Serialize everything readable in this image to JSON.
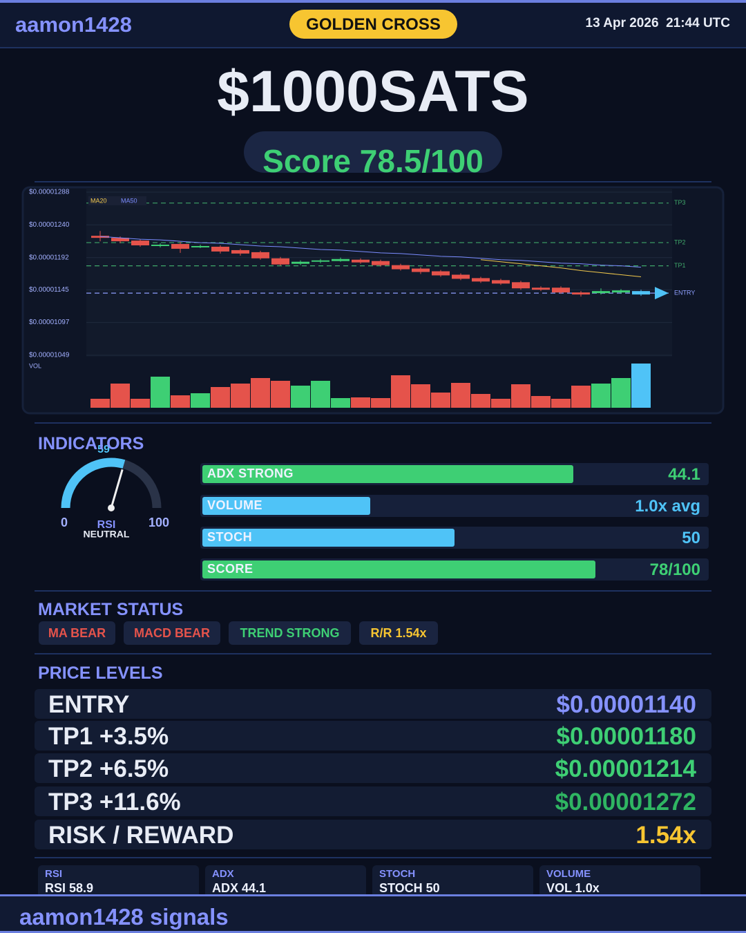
{
  "header": {
    "user": "aamon1428",
    "badge": "GOLDEN CROSS",
    "timestamp": "13 Apr 2026  21:44 UTC"
  },
  "title": "$1000SATS",
  "score": "Score 78.5/100",
  "chart_data": {
    "type": "candlestick",
    "ylim": [
      1.049e-05,
      1.288e-05
    ],
    "yticks": [
      {
        "value": 1.288e-05,
        "label": "$0.00001288"
      },
      {
        "value": 1.24e-05,
        "label": "$0.00001240"
      },
      {
        "value": 1.192e-05,
        "label": "$0.00001192"
      },
      {
        "value": 1.145e-05,
        "label": "$0.00001145"
      },
      {
        "value": 1.097e-05,
        "label": "$0.00001097"
      },
      {
        "value": 1.049e-05,
        "label": "$0.00001049"
      }
    ],
    "grid": true,
    "open": [
      1.224e-05,
      1.221e-05,
      1.217e-05,
      1.209e-05,
      1.212e-05,
      1.207e-05,
      1.208e-05,
      1.203e-05,
      1.2e-05,
      1.191e-05,
      1.183e-05,
      1.186e-05,
      1.187e-05,
      1.189e-05,
      1.187e-05,
      1.181e-05,
      1.176e-05,
      1.172e-05,
      1.167e-05,
      1.162e-05,
      1.159e-05,
      1.156e-05,
      1.148e-05,
      1.148e-05,
      1.141e-05,
      1.14e-05,
      1.141e-05,
      1.143e-05
    ],
    "high": [
      1.231e-05,
      1.223e-05,
      1.219e-05,
      1.213e-05,
      1.215e-05,
      1.211e-05,
      1.21e-05,
      1.205e-05,
      1.202e-05,
      1.193e-05,
      1.188e-05,
      1.19e-05,
      1.192e-05,
      1.191e-05,
      1.189e-05,
      1.183e-05,
      1.178e-05,
      1.174e-05,
      1.169e-05,
      1.164e-05,
      1.161e-05,
      1.158e-05,
      1.15e-05,
      1.15e-05,
      1.143e-05,
      1.147e-05,
      1.146e-05,
      1.145e-05
    ],
    "low": [
      1.216e-05,
      1.213e-05,
      1.208e-05,
      1.207e-05,
      1.199e-05,
      1.206e-05,
      1.198e-05,
      1.195e-05,
      1.189e-05,
      1.18e-05,
      1.181e-05,
      1.184e-05,
      1.186e-05,
      1.183e-05,
      1.179e-05,
      1.173e-05,
      1.168e-05,
      1.164e-05,
      1.159e-05,
      1.155e-05,
      1.152e-05,
      1.145e-05,
      1.143e-05,
      1.139e-05,
      1.135e-05,
      1.138e-05,
      1.139e-05,
      1.136e-05
    ],
    "close": [
      1.221e-05,
      1.216e-05,
      1.21e-05,
      1.211e-05,
      1.205e-05,
      1.209e-05,
      1.201e-05,
      1.198e-05,
      1.191e-05,
      1.182e-05,
      1.186e-05,
      1.188e-05,
      1.19e-05,
      1.185e-05,
      1.181e-05,
      1.175e-05,
      1.171e-05,
      1.166e-05,
      1.161e-05,
      1.157e-05,
      1.154e-05,
      1.147e-05,
      1.145e-05,
      1.141e-05,
      1.138e-05,
      1.143e-05,
      1.144e-05,
      1.138e-05
    ],
    "up_color": "#3ecf74",
    "down_color": "#e5534b",
    "last_color": "#4fc3f7",
    "volume_label": "VOL",
    "volume": [
      13,
      35,
      13,
      45,
      18,
      21,
      30,
      35,
      43,
      39,
      32,
      39,
      14,
      15,
      14,
      47,
      34,
      22,
      36,
      20,
      13,
      34,
      17,
      13,
      32,
      35,
      43,
      64
    ],
    "ma": [
      {
        "name": "MA20",
        "color": "#f2c94c",
        "values": [
          null,
          null,
          null,
          null,
          null,
          null,
          null,
          null,
          null,
          null,
          null,
          null,
          null,
          null,
          null,
          null,
          null,
          null,
          null,
          1.189e-05,
          1.186e-05,
          1.183e-05,
          1.18e-05,
          1.177e-05,
          1.173e-05,
          1.17e-05,
          1.167e-05,
          1.164e-05
        ]
      },
      {
        "name": "MA50",
        "color": "#7b8cff",
        "values": [
          1.223e-05,
          1.221e-05,
          1.219e-05,
          1.218e-05,
          1.216e-05,
          1.214e-05,
          1.213e-05,
          1.211e-05,
          1.209e-05,
          1.208e-05,
          1.206e-05,
          1.204e-05,
          1.203e-05,
          1.201e-05,
          1.199e-05,
          1.198e-05,
          1.196e-05,
          1.194e-05,
          1.193e-05,
          1.191e-05,
          1.189e-05,
          1.188e-05,
          1.186e-05,
          1.184e-05,
          1.183e-05,
          1.181e-05,
          1.18e-05,
          1.178e-05
        ]
      }
    ],
    "levels": [
      {
        "name": "TP3",
        "value": 1.272e-05,
        "color": "#3fa86a"
      },
      {
        "name": "TP2",
        "value": 1.214e-05,
        "color": "#3fa86a"
      },
      {
        "name": "TP1",
        "value": 1.18e-05,
        "color": "#3fa86a"
      },
      {
        "name": "ENTRY",
        "value": 1.14e-05,
        "color": "#8fa0ff"
      }
    ]
  },
  "indicators": {
    "heading": "INDICATORS",
    "gauge": {
      "name": "RSI",
      "value": 59,
      "min": 0,
      "max": 100,
      "status": "NEUTRAL",
      "color": "#4fc3f7"
    },
    "bars": [
      {
        "name": "ADX  STRONG",
        "value": 44.1,
        "max": 60,
        "color": "#3ecf74"
      },
      {
        "name": "VOLUME",
        "value": 1.0,
        "value_label": "1.0x avg",
        "max": 3,
        "color": "#4fc3f7"
      },
      {
        "name": "STOCH",
        "value": 50,
        "max": 100,
        "color": "#4fc3f7"
      },
      {
        "name": "SCORE",
        "value": 78,
        "value_label": "78/100",
        "max": 100,
        "color": "#3ecf74"
      }
    ]
  },
  "market_status": {
    "heading": "MARKET STATUS",
    "tags": [
      {
        "text": "MA BEAR",
        "color": "#e5534b"
      },
      {
        "text": "MACD BEAR",
        "color": "#e5534b"
      },
      {
        "text": "TREND STRONG",
        "color": "#3ecf74"
      },
      {
        "text": "R/R  1.54x",
        "color": "#f7c531"
      }
    ]
  },
  "price_levels": {
    "heading": "PRICE LEVELS",
    "rows": [
      {
        "label": "ENTRY",
        "price": "$0.00001140",
        "color": "#8592ff"
      },
      {
        "label": "TP1  +3.5%",
        "price": "$0.00001180",
        "color": "#3ecf74"
      },
      {
        "label": "TP2  +6.5%",
        "price": "$0.00001214",
        "color": "#3ecf74"
      },
      {
        "label": "TP3  +11.6%",
        "price": "$0.00001272",
        "color": "#2fb562"
      },
      {
        "label": "RISK / REWARD",
        "price": "1.54x",
        "color": "#f7c531"
      }
    ]
  },
  "stats": [
    {
      "name": "RSI",
      "text": "RSI 58.9"
    },
    {
      "name": "ADX",
      "text": "ADX 44.1"
    },
    {
      "name": "STOCH",
      "text": "STOCH 50"
    },
    {
      "name": "VOLUME",
      "text": "VOL 1.0x"
    }
  ],
  "footer": "aamon1428 signals"
}
